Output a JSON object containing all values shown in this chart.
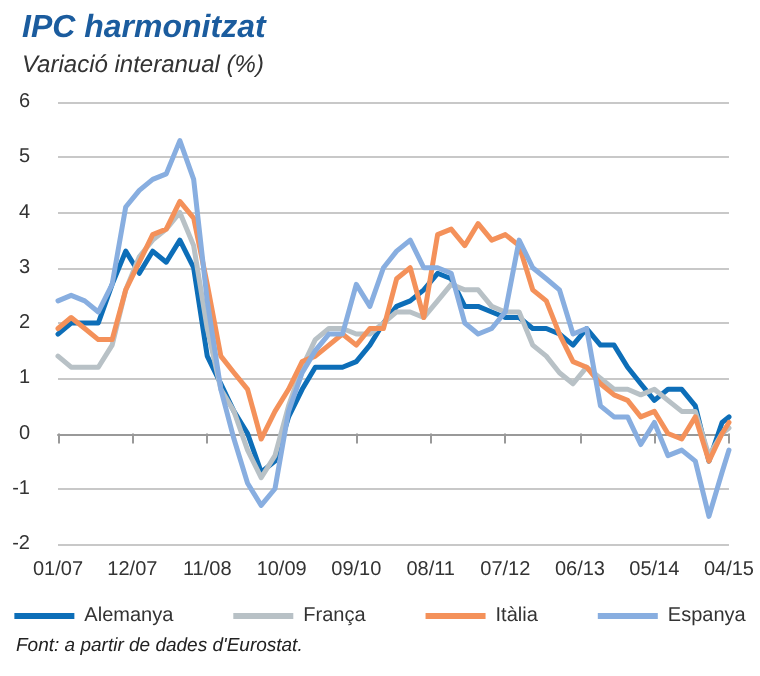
{
  "chart_data": {
    "type": "line",
    "title": "IPC harmonitzat",
    "subtitle": "Variació interanual (%)",
    "annotations": [
      "Font: a partir de dades d'Eurostat."
    ],
    "x": [
      "2007-01",
      "2007-03",
      "2007-05",
      "2007-07",
      "2007-09",
      "2007-11",
      "2008-01",
      "2008-03",
      "2008-05",
      "2008-07",
      "2008-09",
      "2008-11",
      "2009-01",
      "2009-03",
      "2009-05",
      "2009-07",
      "2009-09",
      "2009-11",
      "2010-01",
      "2010-03",
      "2010-05",
      "2010-07",
      "2010-09",
      "2010-11",
      "2011-01",
      "2011-03",
      "2011-05",
      "2011-07",
      "2011-09",
      "2011-11",
      "2012-01",
      "2012-03",
      "2012-05",
      "2012-07",
      "2012-09",
      "2012-11",
      "2013-01",
      "2013-03",
      "2013-05",
      "2013-07",
      "2013-09",
      "2013-11",
      "2014-01",
      "2014-03",
      "2014-05",
      "2014-07",
      "2014-09",
      "2014-11",
      "2015-01",
      "2015-03",
      "2015-04"
    ],
    "series": [
      {
        "name": "Alemanya",
        "color": "#0d6eb8",
        "values": [
          1.8,
          2.0,
          2.0,
          2.0,
          2.7,
          3.3,
          2.9,
          3.3,
          3.1,
          3.5,
          3.0,
          1.4,
          0.9,
          0.4,
          0.0,
          -0.7,
          -0.5,
          0.3,
          0.8,
          1.2,
          1.2,
          1.2,
          1.3,
          1.6,
          2.0,
          2.3,
          2.4,
          2.6,
          2.9,
          2.8,
          2.3,
          2.3,
          2.2,
          2.1,
          2.1,
          1.9,
          1.9,
          1.8,
          1.6,
          1.9,
          1.6,
          1.6,
          1.2,
          0.9,
          0.6,
          0.8,
          0.8,
          0.5,
          -0.5,
          0.2,
          0.3
        ]
      },
      {
        "name": "França",
        "color": "#b8c1c6",
        "values": [
          1.4,
          1.2,
          1.2,
          1.2,
          1.6,
          2.6,
          3.2,
          3.5,
          3.7,
          4.0,
          3.4,
          1.9,
          0.8,
          0.4,
          -0.3,
          -0.8,
          -0.4,
          0.5,
          1.2,
          1.7,
          1.9,
          1.9,
          1.8,
          1.8,
          2.0,
          2.2,
          2.2,
          2.1,
          2.4,
          2.7,
          2.6,
          2.6,
          2.3,
          2.2,
          2.2,
          1.6,
          1.4,
          1.1,
          0.9,
          1.2,
          1.0,
          0.8,
          0.8,
          0.7,
          0.8,
          0.6,
          0.4,
          0.4,
          -0.4,
          0.0,
          0.1
        ]
      },
      {
        "name": "Itàlia",
        "color": "#f4915a",
        "values": [
          1.9,
          2.1,
          1.9,
          1.7,
          1.7,
          2.6,
          3.1,
          3.6,
          3.7,
          4.2,
          3.9,
          2.7,
          1.4,
          1.1,
          0.8,
          -0.1,
          0.4,
          0.8,
          1.3,
          1.4,
          1.6,
          1.8,
          1.6,
          1.9,
          1.9,
          2.8,
          3.0,
          2.1,
          3.6,
          3.7,
          3.4,
          3.8,
          3.5,
          3.6,
          3.4,
          2.6,
          2.4,
          1.8,
          1.3,
          1.2,
          0.9,
          0.7,
          0.6,
          0.3,
          0.4,
          0.0,
          -0.1,
          0.3,
          -0.5,
          0.0,
          0.2
        ]
      },
      {
        "name": "Espanya",
        "color": "#88aee0",
        "values": [
          2.4,
          2.5,
          2.4,
          2.2,
          2.7,
          4.1,
          4.4,
          4.6,
          4.7,
          5.3,
          4.6,
          2.4,
          0.8,
          -0.1,
          -0.9,
          -1.3,
          -1.0,
          0.4,
          1.1,
          1.5,
          1.8,
          1.8,
          2.7,
          2.3,
          3.0,
          3.3,
          3.5,
          3.0,
          3.0,
          2.9,
          2.0,
          1.8,
          1.9,
          2.2,
          3.5,
          3.0,
          2.8,
          2.6,
          1.8,
          1.9,
          0.5,
          0.3,
          0.3,
          -0.2,
          0.2,
          -0.4,
          -0.3,
          -0.5,
          -1.5,
          -0.7,
          -0.3
        ]
      }
    ],
    "xlim": [
      "2007-01",
      "2015-04"
    ],
    "xticks": [
      {
        "value": "2007-01",
        "label": "01/07"
      },
      {
        "value": "2007-12",
        "label": "12/07"
      },
      {
        "value": "2008-11",
        "label": "11/08"
      },
      {
        "value": "2009-10",
        "label": "10/09"
      },
      {
        "value": "2010-09",
        "label": "09/10"
      },
      {
        "value": "2011-08",
        "label": "08/11"
      },
      {
        "value": "2012-07",
        "label": "07/12"
      },
      {
        "value": "2013-06",
        "label": "06/13"
      },
      {
        "value": "2014-05",
        "label": "05/14"
      },
      {
        "value": "2015-04",
        "label": "04/15"
      }
    ],
    "ylim": [
      -2,
      6
    ],
    "yticks": [
      -2,
      -1,
      0,
      1,
      2,
      3,
      4,
      5,
      6
    ],
    "grid": "y",
    "legend": "bottom",
    "marker": "none",
    "line_style": "solid"
  }
}
